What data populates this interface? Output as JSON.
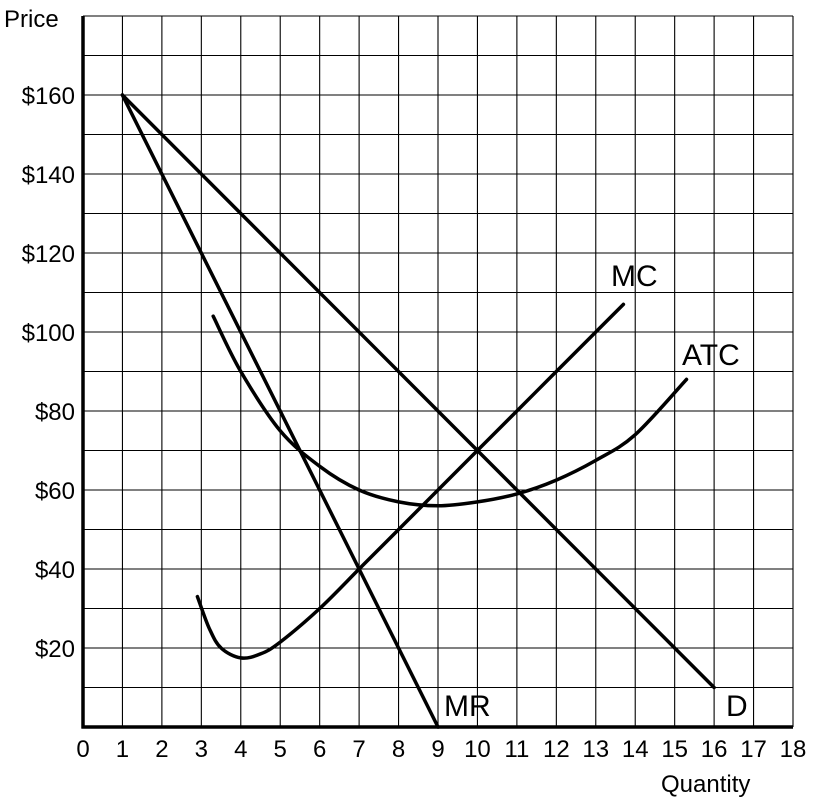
{
  "chart_data": {
    "type": "line",
    "title": "",
    "xlabel": "Quantity",
    "ylabel": "Price",
    "xlim": [
      0,
      18
    ],
    "ylim": [
      0,
      180
    ],
    "x_ticks": [
      0,
      1,
      2,
      3,
      4,
      5,
      6,
      7,
      8,
      9,
      10,
      11,
      12,
      13,
      14,
      15,
      16,
      17,
      18
    ],
    "x_tick_labels": [
      "0",
      "1",
      "2",
      "3",
      "4",
      "5",
      "6",
      "7",
      "8",
      "9",
      "10",
      "11",
      "12",
      "13",
      "14",
      "15",
      "16",
      "17",
      "18"
    ],
    "y_ticks": [
      20,
      40,
      60,
      80,
      100,
      120,
      140,
      160
    ],
    "y_tick_labels": [
      "$20",
      "$40",
      "$60",
      "$80",
      "$100",
      "$120",
      "$140",
      "$160"
    ],
    "grid": true,
    "series": [
      {
        "name": "D",
        "points": [
          [
            1,
            160
          ],
          [
            16,
            10
          ]
        ]
      },
      {
        "name": "MR",
        "points": [
          [
            1,
            160
          ],
          [
            9,
            0
          ]
        ]
      },
      {
        "name": "MC",
        "points": [
          [
            2.9,
            33
          ],
          [
            3.2,
            25
          ],
          [
            3.5,
            20
          ],
          [
            4,
            17.5
          ],
          [
            4.5,
            18.5
          ],
          [
            5,
            21.5
          ],
          [
            6,
            30
          ],
          [
            7,
            40
          ],
          [
            8,
            50
          ],
          [
            9,
            60
          ],
          [
            10,
            70
          ],
          [
            11,
            80
          ],
          [
            12,
            90
          ],
          [
            13,
            100
          ],
          [
            13.7,
            107
          ]
        ]
      },
      {
        "name": "ATC",
        "points": [
          [
            3.3,
            104
          ],
          [
            4,
            90
          ],
          [
            5,
            75
          ],
          [
            6,
            66
          ],
          [
            7,
            60
          ],
          [
            8,
            57
          ],
          [
            9,
            56
          ],
          [
            10,
            57
          ],
          [
            11,
            59
          ],
          [
            12,
            62.5
          ],
          [
            13,
            67.5
          ],
          [
            14,
            74
          ],
          [
            15.3,
            88
          ]
        ]
      }
    ],
    "labels": {
      "D": "D",
      "MR": "MR",
      "MC": "MC",
      "ATC": "ATC"
    }
  }
}
